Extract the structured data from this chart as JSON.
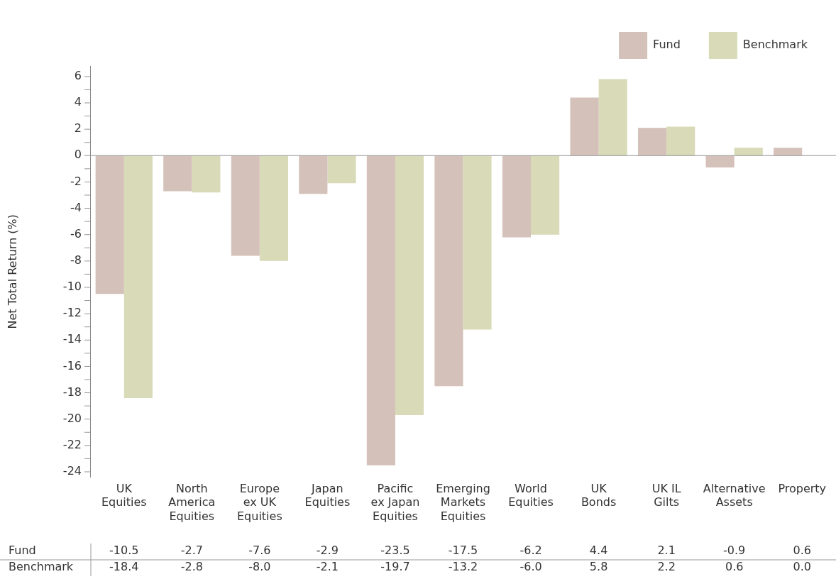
{
  "chart_data": {
    "type": "bar",
    "ylabel": "Net Total Return (%)",
    "categories": [
      "UK Equities",
      "North America Equities",
      "Europe ex UK Equities",
      "Japan Equities",
      "Pacific ex Japan Equities",
      "Emerging Markets Equities",
      "World Equities",
      "UK Bonds",
      "UK IL Gilts",
      "Alternative Assets",
      "Property"
    ],
    "series": [
      {
        "name": "Fund",
        "color": "#d4c1ba",
        "values": [
          -10.5,
          -2.7,
          -7.6,
          -2.9,
          -23.5,
          -17.5,
          -6.2,
          4.4,
          2.1,
          -0.9,
          0.6
        ],
        "value_labels": [
          "-10.5",
          "-2.7",
          "-7.6",
          "-2.9",
          "-23.5",
          "-17.5",
          "-6.2",
          "4.4",
          "2.1",
          "-0.9",
          "0.6"
        ]
      },
      {
        "name": "Benchmark",
        "color": "#d9dab7",
        "values": [
          -18.4,
          -2.8,
          -8.0,
          -2.1,
          -19.7,
          -13.2,
          -6.0,
          5.8,
          2.2,
          0.6,
          0.0
        ],
        "value_labels": [
          "-18.4",
          "-2.8",
          "-8.0",
          "-2.1",
          "-19.7",
          "-13.2",
          "-6.0",
          "5.8",
          "2.2",
          "0.6",
          "0.0"
        ]
      }
    ],
    "ylim": [
      -24.4,
      6.8
    ],
    "yticks": [
      -24,
      {
        "value": -23,
        "label": null
      },
      -22,
      {
        "value": -21,
        "label": null
      },
      -20,
      {
        "value": -19,
        "label": null
      },
      -18,
      {
        "value": -17,
        "label": null
      },
      -16,
      {
        "value": -15,
        "label": null
      },
      -14,
      {
        "value": -13,
        "label": null
      },
      -12,
      {
        "value": -11,
        "label": null
      },
      -10,
      {
        "value": -9,
        "label": null
      },
      -8,
      {
        "value": -7,
        "label": null
      },
      -6,
      {
        "value": -5,
        "label": null
      },
      -4,
      {
        "value": -3,
        "label": null
      },
      -2,
      {
        "value": -1,
        "label": null
      },
      0,
      {
        "value": 1,
        "label": null
      },
      2,
      {
        "value": 3,
        "label": null
      },
      4,
      {
        "value": 5,
        "label": null
      },
      6
    ],
    "legend": "top right"
  }
}
